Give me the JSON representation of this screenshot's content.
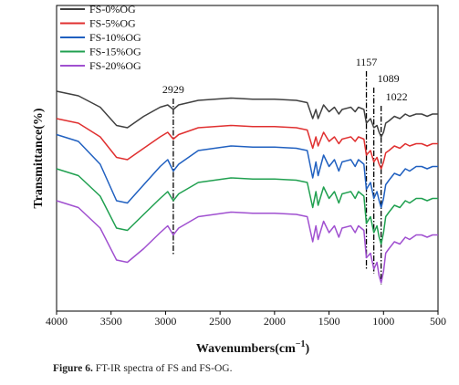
{
  "chart_data": {
    "type": "line",
    "xlabel": "Wavenumbers(cm",
    "xlabel_superscript": "−1",
    "xlabel_suffix": ")",
    "ylabel": "Transmittance(%)",
    "xlim": [
      4000,
      500
    ],
    "x_reversed": true,
    "ylim": [
      0,
      100
    ],
    "y_ticks_shown": false,
    "grid": false,
    "legend_position": "top-left",
    "x_ticks": [
      4000,
      3500,
      3000,
      2500,
      2000,
      1500,
      1000,
      500
    ],
    "series": [
      {
        "name": "FS-0%OG",
        "color": "#404040",
        "points": [
          [
            4000,
            88
          ],
          [
            3800,
            86
          ],
          [
            3600,
            81
          ],
          [
            3450,
            73
          ],
          [
            3350,
            72
          ],
          [
            3200,
            77
          ],
          [
            3050,
            81
          ],
          [
            2980,
            82
          ],
          [
            2929,
            80
          ],
          [
            2880,
            82
          ],
          [
            2700,
            84
          ],
          [
            2400,
            85
          ],
          [
            2200,
            84.5
          ],
          [
            2000,
            84.5
          ],
          [
            1800,
            84
          ],
          [
            1700,
            83
          ],
          [
            1650,
            76
          ],
          [
            1620,
            80
          ],
          [
            1600,
            76
          ],
          [
            1550,
            82
          ],
          [
            1500,
            79
          ],
          [
            1450,
            81
          ],
          [
            1410,
            78
          ],
          [
            1380,
            80
          ],
          [
            1300,
            81
          ],
          [
            1260,
            79
          ],
          [
            1230,
            81
          ],
          [
            1180,
            80
          ],
          [
            1157,
            74
          ],
          [
            1120,
            76
          ],
          [
            1089,
            72
          ],
          [
            1060,
            73
          ],
          [
            1040,
            70
          ],
          [
            1022,
            68
          ],
          [
            1000,
            70
          ],
          [
            980,
            74
          ],
          [
            950,
            75
          ],
          [
            900,
            77
          ],
          [
            850,
            76
          ],
          [
            800,
            78
          ],
          [
            760,
            77
          ],
          [
            700,
            78
          ],
          [
            650,
            78
          ],
          [
            600,
            77
          ],
          [
            550,
            78
          ],
          [
            500,
            78
          ]
        ]
      },
      {
        "name": "FS-5%OG",
        "color": "#e03030",
        "points": [
          [
            4000,
            76
          ],
          [
            3800,
            74
          ],
          [
            3600,
            68
          ],
          [
            3450,
            59
          ],
          [
            3350,
            58
          ],
          [
            3200,
            63
          ],
          [
            3050,
            68
          ],
          [
            2980,
            70
          ],
          [
            2929,
            67
          ],
          [
            2880,
            69
          ],
          [
            2700,
            72
          ],
          [
            2400,
            73
          ],
          [
            2200,
            72.5
          ],
          [
            2000,
            72.5
          ],
          [
            1800,
            72
          ],
          [
            1700,
            71
          ],
          [
            1650,
            63
          ],
          [
            1620,
            68
          ],
          [
            1600,
            64
          ],
          [
            1550,
            70
          ],
          [
            1500,
            66
          ],
          [
            1450,
            68
          ],
          [
            1410,
            65
          ],
          [
            1380,
            67
          ],
          [
            1300,
            68
          ],
          [
            1260,
            66
          ],
          [
            1230,
            68
          ],
          [
            1180,
            67
          ],
          [
            1157,
            60
          ],
          [
            1120,
            62
          ],
          [
            1089,
            57
          ],
          [
            1060,
            59
          ],
          [
            1040,
            56
          ],
          [
            1022,
            54
          ],
          [
            1000,
            57
          ],
          [
            980,
            61
          ],
          [
            950,
            62
          ],
          [
            900,
            64
          ],
          [
            850,
            63
          ],
          [
            800,
            65
          ],
          [
            760,
            64
          ],
          [
            700,
            65
          ],
          [
            650,
            65
          ],
          [
            600,
            64
          ],
          [
            550,
            65
          ],
          [
            500,
            65
          ]
        ]
      },
      {
        "name": "FS-10%OG",
        "color": "#2060c0",
        "points": [
          [
            4000,
            69
          ],
          [
            3800,
            66
          ],
          [
            3600,
            56
          ],
          [
            3450,
            40
          ],
          [
            3350,
            39
          ],
          [
            3200,
            47
          ],
          [
            3050,
            55
          ],
          [
            2980,
            58
          ],
          [
            2929,
            53
          ],
          [
            2880,
            56
          ],
          [
            2700,
            62
          ],
          [
            2400,
            64
          ],
          [
            2200,
            63.5
          ],
          [
            2000,
            63.5
          ],
          [
            1800,
            63
          ],
          [
            1700,
            62
          ],
          [
            1650,
            50
          ],
          [
            1620,
            57
          ],
          [
            1600,
            51
          ],
          [
            1550,
            60
          ],
          [
            1500,
            55
          ],
          [
            1450,
            58
          ],
          [
            1410,
            53
          ],
          [
            1380,
            57
          ],
          [
            1300,
            58
          ],
          [
            1260,
            55
          ],
          [
            1230,
            58
          ],
          [
            1180,
            56
          ],
          [
            1157,
            45
          ],
          [
            1120,
            48
          ],
          [
            1089,
            41
          ],
          [
            1060,
            44
          ],
          [
            1040,
            40
          ],
          [
            1022,
            37
          ],
          [
            1000,
            41
          ],
          [
            980,
            47
          ],
          [
            950,
            49
          ],
          [
            900,
            52
          ],
          [
            850,
            51
          ],
          [
            800,
            54
          ],
          [
            760,
            53
          ],
          [
            700,
            55
          ],
          [
            650,
            55
          ],
          [
            600,
            54
          ],
          [
            550,
            55
          ],
          [
            500,
            55
          ]
        ]
      },
      {
        "name": "FS-15%OG",
        "color": "#20a050",
        "points": [
          [
            4000,
            54
          ],
          [
            3800,
            51
          ],
          [
            3600,
            42
          ],
          [
            3450,
            28
          ],
          [
            3350,
            27
          ],
          [
            3200,
            34
          ],
          [
            3050,
            41
          ],
          [
            2980,
            44
          ],
          [
            2929,
            40
          ],
          [
            2880,
            43
          ],
          [
            2700,
            48
          ],
          [
            2400,
            50
          ],
          [
            2200,
            49.5
          ],
          [
            2000,
            49.5
          ],
          [
            1800,
            49
          ],
          [
            1700,
            48
          ],
          [
            1650,
            37
          ],
          [
            1620,
            44
          ],
          [
            1600,
            38
          ],
          [
            1550,
            46
          ],
          [
            1500,
            41
          ],
          [
            1450,
            44
          ],
          [
            1410,
            39
          ],
          [
            1380,
            43
          ],
          [
            1300,
            44
          ],
          [
            1260,
            41
          ],
          [
            1230,
            44
          ],
          [
            1180,
            42
          ],
          [
            1157,
            30
          ],
          [
            1120,
            33
          ],
          [
            1089,
            26
          ],
          [
            1060,
            29
          ],
          [
            1040,
            24
          ],
          [
            1022,
            21
          ],
          [
            1000,
            26
          ],
          [
            980,
            33
          ],
          [
            950,
            35
          ],
          [
            900,
            38
          ],
          [
            850,
            37
          ],
          [
            800,
            40
          ],
          [
            760,
            39
          ],
          [
            700,
            41
          ],
          [
            650,
            41
          ],
          [
            600,
            40
          ],
          [
            550,
            41
          ],
          [
            500,
            41
          ]
        ]
      },
      {
        "name": "FS-20%OG",
        "color": "#a050d0",
        "points": [
          [
            4000,
            40
          ],
          [
            3800,
            37
          ],
          [
            3600,
            28
          ],
          [
            3450,
            14
          ],
          [
            3350,
            13
          ],
          [
            3200,
            19
          ],
          [
            3050,
            26
          ],
          [
            2980,
            29
          ],
          [
            2929,
            25
          ],
          [
            2880,
            28
          ],
          [
            2700,
            33
          ],
          [
            2400,
            35
          ],
          [
            2200,
            34.5
          ],
          [
            2000,
            34.5
          ],
          [
            1800,
            34
          ],
          [
            1700,
            33
          ],
          [
            1650,
            22
          ],
          [
            1620,
            29
          ],
          [
            1600,
            23
          ],
          [
            1550,
            31
          ],
          [
            1500,
            26
          ],
          [
            1450,
            29
          ],
          [
            1410,
            24
          ],
          [
            1380,
            28
          ],
          [
            1300,
            29
          ],
          [
            1260,
            26
          ],
          [
            1230,
            29
          ],
          [
            1180,
            27
          ],
          [
            1157,
            15
          ],
          [
            1120,
            17
          ],
          [
            1089,
            10
          ],
          [
            1060,
            13
          ],
          [
            1040,
            7
          ],
          [
            1022,
            4
          ],
          [
            1000,
            9
          ],
          [
            980,
            17
          ],
          [
            950,
            19
          ],
          [
            900,
            22
          ],
          [
            850,
            21
          ],
          [
            800,
            24
          ],
          [
            760,
            23
          ],
          [
            700,
            25
          ],
          [
            650,
            25
          ],
          [
            600,
            24
          ],
          [
            550,
            25
          ],
          [
            500,
            25
          ]
        ]
      }
    ],
    "annotations": [
      {
        "label": "2929",
        "x": 2929
      },
      {
        "label": "1157",
        "x": 1157
      },
      {
        "label": "1089",
        "x": 1089
      },
      {
        "label": "1022",
        "x": 1022
      }
    ]
  },
  "caption": {
    "label": "Figure 6.",
    "text": " FT-IR spectra of FS and FS-OG."
  }
}
